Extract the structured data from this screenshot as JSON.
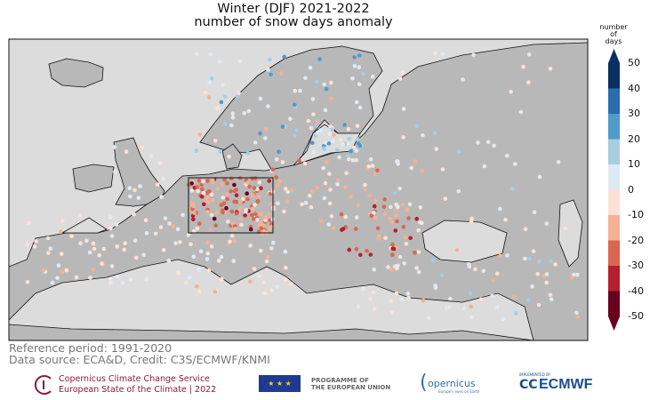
{
  "title": {
    "line1": "Winter (DJF) 2021-2022",
    "line2": "number of snow days anomaly"
  },
  "colorbar": {
    "label": [
      "number",
      "of",
      "days"
    ],
    "ticks": [
      "50",
      "40",
      "30",
      "20",
      "10",
      "0",
      "-10",
      "-20",
      "-30",
      "-40",
      "-50"
    ],
    "bins": [
      {
        "range": [
          40,
          50
        ],
        "color": "#0a2f63"
      },
      {
        "range": [
          30,
          40
        ],
        "color": "#2b6cae"
      },
      {
        "range": [
          20,
          30
        ],
        "color": "#4f9bc9"
      },
      {
        "range": [
          10,
          20
        ],
        "color": "#a7cde3"
      },
      {
        "range": [
          0,
          10
        ],
        "color": "#e0eaf3"
      },
      {
        "range": [
          -10,
          0
        ],
        "color": "#fbe2d5"
      },
      {
        "range": [
          -20,
          -10
        ],
        "color": "#f4b196"
      },
      {
        "range": [
          -30,
          -20
        ],
        "color": "#d9674f"
      },
      {
        "range": [
          -40,
          -30
        ],
        "color": "#b4202e"
      },
      {
        "range": [
          -50,
          -40
        ],
        "color": "#67001f"
      }
    ],
    "extend": "both"
  },
  "map": {
    "land_color": "#b8b8b8",
    "sea_color": "#dcdcdc",
    "highlight_box": "Central Europe"
  },
  "footer": {
    "reference": "Reference period: 1991-2020",
    "source": "Data source: ECA&D, Credit: C3S/ECMWF/KNMI"
  },
  "logos": {
    "c3s_line1": "Copernicus Climate Change Service",
    "c3s_line2": "European State of the Climate | 2022",
    "eu_line1": "PROGRAMME OF",
    "eu_line2": "THE EUROPEAN UNION",
    "copernicus": "opernicus",
    "copernicus_tag": "Europe's eyes on Earth",
    "ecmwf_tag": "IMPLEMENTED BY",
    "ecmwf": "ECMWF"
  }
}
